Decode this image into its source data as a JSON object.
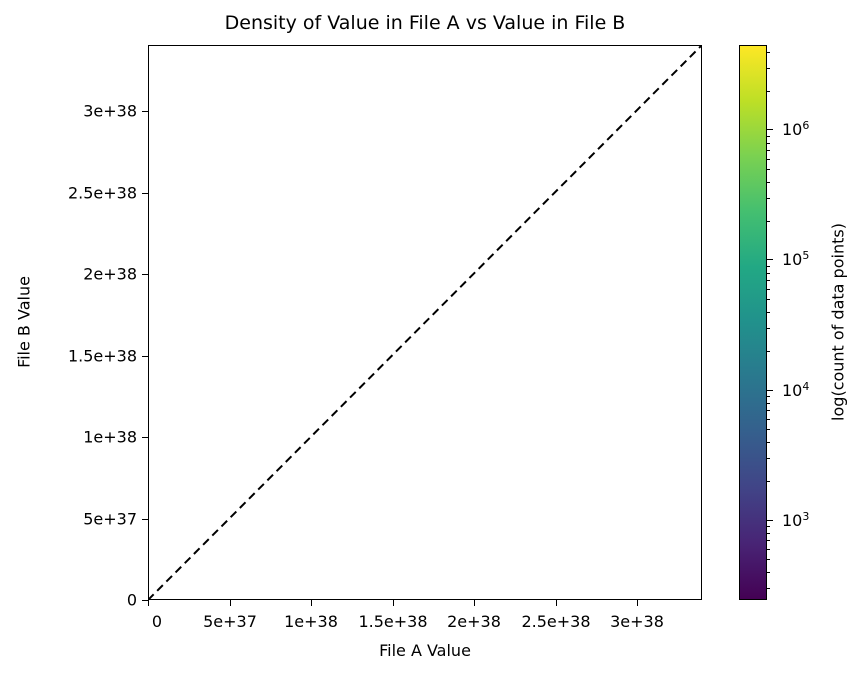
{
  "chart_data": {
    "type": "heatmap",
    "title": "Density of Value in File A vs Value in File B",
    "xlabel": "File A Value",
    "ylabel": "File B Value",
    "xlim": [
      0,
      3.4e+38
    ],
    "ylim": [
      0,
      3.4e+38
    ],
    "x_ticks": [
      0,
      5e+37,
      1e+38,
      1.5e+38,
      2e+38,
      2.5e+38,
      3e+38
    ],
    "x_tick_labels": [
      "0",
      "5e+37",
      "1e+38",
      "1.5e+38",
      "2e+38",
      "2.5e+38",
      "3e+38"
    ],
    "y_ticks": [
      0,
      5e+37,
      1e+38,
      1.5e+38,
      2e+38,
      2.5e+38,
      3e+38
    ],
    "y_tick_labels": [
      "0",
      "5e+37",
      "1e+38",
      "1.5e+38",
      "2e+38",
      "2.5e+38",
      "3e+38"
    ],
    "reference_line": {
      "style": "dashed",
      "color": "#000000",
      "from": [
        0,
        0
      ],
      "to": [
        3.4e+38,
        3.4e+38
      ],
      "label": "y = x"
    },
    "colorbar": {
      "label": "log(count of data points)",
      "scale": "log",
      "colormap": "viridis",
      "range": [
        250,
        4000000
      ],
      "ticks": [
        1000,
        10000,
        100000,
        1000000
      ],
      "tick_labels": [
        "10^3",
        "10^4",
        "10^5",
        "10^6"
      ]
    },
    "grid": false,
    "visible_bins": "none visible (plot area blank)"
  },
  "ticks": {
    "x": [
      {
        "label": "0",
        "pos": 148
      },
      {
        "label": "5e+37",
        "pos": 230
      },
      {
        "label": "1e+38",
        "pos": 311
      },
      {
        "label": "1.5e+38",
        "pos": 393
      },
      {
        "label": "2e+38",
        "pos": 474
      },
      {
        "label": "2.5e+38",
        "pos": 556
      },
      {
        "label": "3e+38",
        "pos": 637
      }
    ],
    "y": [
      {
        "label": "0",
        "pos": 600
      },
      {
        "label": "5e+37",
        "pos": 519
      },
      {
        "label": "1e+38",
        "pos": 437
      },
      {
        "label": "1.5e+38",
        "pos": 356
      },
      {
        "label": "2e+38",
        "pos": 274
      },
      {
        "label": "2.5e+38",
        "pos": 193
      },
      {
        "label": "3e+38",
        "pos": 111
      }
    ],
    "cbar": [
      {
        "base": "10",
        "exp": "3",
        "pos": 520
      },
      {
        "base": "10",
        "exp": "4",
        "pos": 390
      },
      {
        "base": "10",
        "exp": "5",
        "pos": 259
      },
      {
        "base": "10",
        "exp": "6",
        "pos": 129
      }
    ]
  }
}
